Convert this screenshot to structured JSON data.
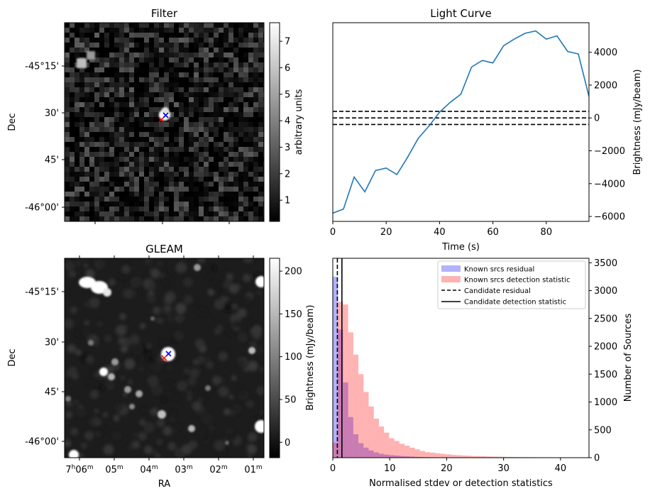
{
  "filter_panel": {
    "title": "Filter",
    "ylabel": "Dec",
    "dec_ticks": [
      "-45°15'",
      "30'",
      "45'",
      "-46°00'"
    ],
    "colorbar_label": "arbitrary units",
    "colorbar_ticks": [
      "1",
      "2",
      "3",
      "4",
      "5",
      "6",
      "7"
    ],
    "colorbar_range": [
      0.2,
      7.7
    ]
  },
  "gleam_panel": {
    "title": "GLEAM",
    "ylabel": "Dec",
    "xlabel": "RA",
    "dec_ticks": [
      "-45°15'",
      "30'",
      "45'",
      "-46°00'"
    ],
    "ra_ticks": [
      {
        "h": "7",
        "hsup": "h",
        "m": "06",
        "msup": "m"
      },
      {
        "h": "",
        "hsup": "",
        "m": "05",
        "msup": "m"
      },
      {
        "h": "",
        "hsup": "",
        "m": "04",
        "msup": "m"
      },
      {
        "h": "",
        "hsup": "",
        "m": "03",
        "msup": "m"
      },
      {
        "h": "",
        "hsup": "",
        "m": "02",
        "msup": "m"
      },
      {
        "h": "",
        "hsup": "",
        "m": "01",
        "msup": "m"
      }
    ],
    "colorbar_label": "Brightness (mJy/beam)",
    "colorbar_ticks": [
      "0",
      "50",
      "100",
      "150",
      "200"
    ],
    "colorbar_range": [
      -18,
      215
    ],
    "marker_colors": {
      "candidate": "#0000ff",
      "known": "#ff0000"
    }
  },
  "chart_data": [
    {
      "type": "line",
      "title": "Light Curve",
      "xlabel": "Time (s)",
      "ylabel": "Brightness (mJy/beam)",
      "xlim": [
        0,
        96
      ],
      "ylim": [
        -6300,
        5800
      ],
      "xticks": [
        0,
        20,
        40,
        60,
        80
      ],
      "yticks": [
        -6000,
        -4000,
        -2000,
        0,
        2000,
        4000
      ],
      "color": "#1f77b4",
      "x": [
        0,
        4,
        8,
        12,
        16,
        20,
        24,
        28,
        32,
        36,
        40,
        44,
        48,
        52,
        56,
        60,
        64,
        68,
        72,
        76,
        80,
        84,
        88,
        92,
        96
      ],
      "y": [
        -5800,
        -5550,
        -3600,
        -4500,
        -3200,
        -3050,
        -3450,
        -2400,
        -1250,
        -500,
        350,
        950,
        1450,
        3100,
        3500,
        3350,
        4400,
        4800,
        5150,
        5300,
        4800,
        5000,
        4050,
        3900,
        1300
      ],
      "hlines": [
        400,
        0,
        -400
      ]
    },
    {
      "type": "bar",
      "xlabel": "Normalised stdev or detection statistics",
      "ylabel": "Number of Sources",
      "xlim": [
        0,
        45
      ],
      "ylim": [
        0,
        3580
      ],
      "xticks": [
        0,
        10,
        20,
        30,
        40
      ],
      "yticks": [
        0,
        500,
        1000,
        1500,
        2000,
        2500,
        3000,
        3500
      ],
      "bin_width": 0.9,
      "series": [
        {
          "name": "Known srcs residual",
          "color": "#0000ff",
          "alpha": 0.3,
          "values": [
            3250,
            2300,
            1350,
            730,
            420,
            260,
            180,
            130,
            95,
            70,
            55,
            45,
            38,
            30,
            25,
            20,
            15,
            12,
            10,
            8,
            6,
            5,
            4,
            3,
            2
          ]
        },
        {
          "name": "Known srcs detection statistic",
          "color": "#ff0000",
          "alpha": 0.3,
          "values": [
            270,
            2800,
            2750,
            2250,
            1850,
            1500,
            1180,
            920,
            700,
            560,
            450,
            350,
            300,
            250,
            215,
            180,
            150,
            120,
            100,
            90,
            80,
            70,
            60,
            50,
            45,
            40,
            35,
            30,
            28,
            25,
            22,
            20,
            18,
            16,
            14,
            12,
            11,
            10,
            9,
            8,
            7,
            7,
            6,
            6,
            5,
            5,
            4,
            4,
            4,
            3
          ]
        }
      ],
      "vlines": [
        {
          "name": "Candidate residual",
          "x": 0.8,
          "style": "dashed"
        },
        {
          "name": "Candidate detection statistic",
          "x": 1.6,
          "style": "solid"
        }
      ],
      "legend": "top-right"
    }
  ]
}
